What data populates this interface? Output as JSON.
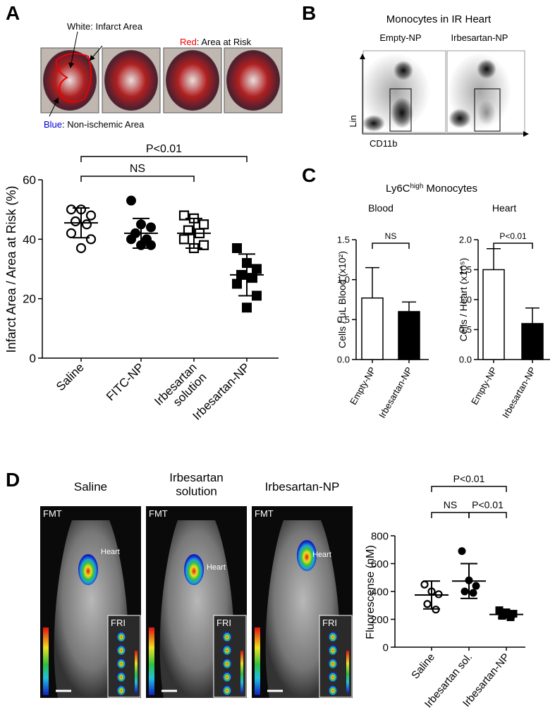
{
  "panel_letters": [
    "A",
    "B",
    "C",
    "D"
  ],
  "panel_a": {
    "annotations": [
      {
        "key": "White",
        "text": ": Infarct Area"
      },
      {
        "key": "Red",
        "text": ": Area at Risk"
      },
      {
        "key": "Blue",
        "text": ": Non-ischemic Area"
      }
    ]
  },
  "panel_b": {
    "title": "Monocytes in IR Heart",
    "groups": [
      "Empty-NP",
      "Irbesartan-NP"
    ],
    "y_label": "Lin",
    "x_label": "CD11b"
  },
  "panel_c": {
    "title": {
      "main": "Ly6C",
      "sup": "high",
      "rest": "Monocytes"
    }
  },
  "panel_d": {
    "images": [
      {
        "title": "Saline",
        "modality": "FMT",
        "organ": "Heart",
        "inset": "FRI"
      },
      {
        "title": "Irbesartan\nsolution",
        "modality": "FMT",
        "organ": "Heart",
        "inset": "FRI"
      },
      {
        "title": "Irbesartan-NP",
        "modality": "FMT",
        "organ": "Heart",
        "inset": "FRI"
      }
    ]
  },
  "chart_data": [
    {
      "type": "dotplot",
      "y_label": "Infarct Area / Area at Risk (%)",
      "categories": [
        "Saline",
        "FITC-NP",
        "Irbesartan\nsolution",
        "Irbesartan-NP"
      ],
      "points": [
        [
          50,
          50,
          48,
          46,
          45,
          42,
          40,
          37
        ],
        [
          53,
          45,
          44,
          42,
          40,
          40,
          38,
          38
        ],
        [
          48,
          47,
          45,
          43,
          42,
          40,
          38,
          37
        ],
        [
          37,
          32,
          30,
          28,
          27,
          25,
          21,
          17
        ]
      ],
      "means": [
        45.5,
        42,
        42,
        28
      ],
      "sd": [
        5,
        5,
        5,
        7
      ],
      "markers": [
        "open-circle",
        "circle",
        "open-square",
        "square"
      ],
      "color": "#000000",
      "ylim": [
        0,
        60
      ],
      "yticks": [
        0,
        20,
        40,
        60
      ],
      "brackets": [
        {
          "label": "NS",
          "from": 0,
          "to": 2
        },
        {
          "label": "P<0.01",
          "from": 0,
          "to": 3
        }
      ]
    },
    {
      "type": "bar",
      "title": "Blood",
      "y_label": "Cells / uL Blood (x10²)",
      "categories": [
        "Empty-NP",
        "Irbesartan-NP"
      ],
      "values": [
        0.77,
        0.6
      ],
      "errors": [
        0.38,
        0.12
      ],
      "colors": [
        "#ffffff",
        "#000000"
      ],
      "ylim": [
        0,
        1.5
      ],
      "yticks": [
        {
          "value": 0,
          "label": "0.0"
        },
        {
          "value": 0.5,
          "label": "0.5"
        },
        {
          "value": 1,
          "label": "1.0"
        },
        {
          "value": 1.5,
          "label": "1.5"
        }
      ],
      "brackets": [
        {
          "label": "NS",
          "from": 0,
          "to": 1
        }
      ]
    },
    {
      "type": "bar",
      "title": "Heart",
      "y_label": "Cells / Heart  (x10⁵)",
      "categories": [
        "Empty-NP",
        "Irbesartan-NP"
      ],
      "values": [
        1.5,
        0.6
      ],
      "errors": [
        0.35,
        0.26
      ],
      "colors": [
        "#ffffff",
        "#000000"
      ],
      "ylim": [
        0,
        2
      ],
      "yticks": [
        {
          "value": 0,
          "label": "0.0"
        },
        {
          "value": 0.5,
          "label": "0.5"
        },
        {
          "value": 1,
          "label": "1.0"
        },
        {
          "value": 1.5,
          "label": "1.5"
        },
        {
          "value": 2,
          "label": "2.0"
        }
      ],
      "brackets": [
        {
          "label": "P<0.01",
          "from": 0,
          "to": 1
        }
      ]
    },
    {
      "type": "dotplot",
      "y_label": "Fluorescense (nM)",
      "categories": [
        "Saline",
        "Irbesartan sol.",
        "Irbesartan-NP"
      ],
      "points": [
        [
          450,
          400,
          380,
          310,
          270
        ],
        [
          690,
          480,
          440,
          400,
          390
        ],
        [
          265,
          250,
          240,
          225,
          215
        ]
      ],
      "means": [
        375,
        475,
        235
      ],
      "sd": [
        100,
        125,
        25
      ],
      "markers": [
        "open-circle",
        "circle",
        "square"
      ],
      "color": "#000000",
      "ylim": [
        0,
        800
      ],
      "yticks": [
        0,
        200,
        400,
        600,
        800
      ],
      "brackets": [
        {
          "label": "NS",
          "from": 0,
          "to": 1
        },
        {
          "label": "P<0.01",
          "from": 1,
          "to": 2
        },
        {
          "label": "P<0.01",
          "from": 0,
          "to": 2
        }
      ]
    }
  ]
}
